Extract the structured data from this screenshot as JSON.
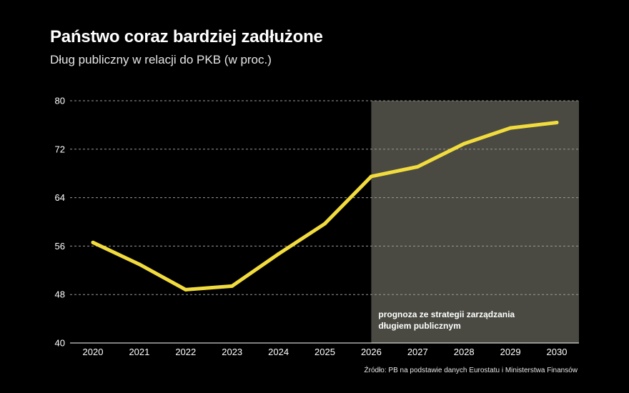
{
  "title": "Państwo coraz bardziej zadłużone",
  "subtitle": "Dług publiczny w relacji do PKB (w proc.)",
  "source": "Źródło: PB na podstawie danych Eurostatu i Ministerstwa Finansów",
  "colors": {
    "background": "#000000",
    "line": "#f2dc3d",
    "forecast_band": "#4a4a43",
    "grid": "#9a9a9a"
  },
  "chart_data": {
    "type": "line",
    "title": "Państwo coraz bardziej zadłużone",
    "subtitle": "Dług publiczny w relacji do PKB (w proc.)",
    "xlabel": "",
    "ylabel": "",
    "x": [
      2020,
      2021,
      2022,
      2023,
      2024,
      2025,
      2026,
      2027,
      2028,
      2029,
      2030
    ],
    "series": [
      {
        "values": [
          56.6,
          53.0,
          48.8,
          49.4,
          54.7,
          59.7,
          67.5,
          69.1,
          72.9,
          75.5,
          76.4
        ]
      }
    ],
    "ylim": [
      40,
      80
    ],
    "yticks": [
      40,
      48,
      56,
      64,
      72,
      80
    ],
    "xticks": [
      "2020",
      "2021",
      "2022",
      "2023",
      "2024",
      "2025",
      "2026",
      "2027",
      "2028",
      "2029",
      "2030"
    ],
    "grid": "horizontal dashed",
    "forecast_range": [
      2026,
      2030
    ],
    "forecast_label": [
      "prognoza ze strategii zarządzania",
      "długiem publicznym"
    ]
  }
}
